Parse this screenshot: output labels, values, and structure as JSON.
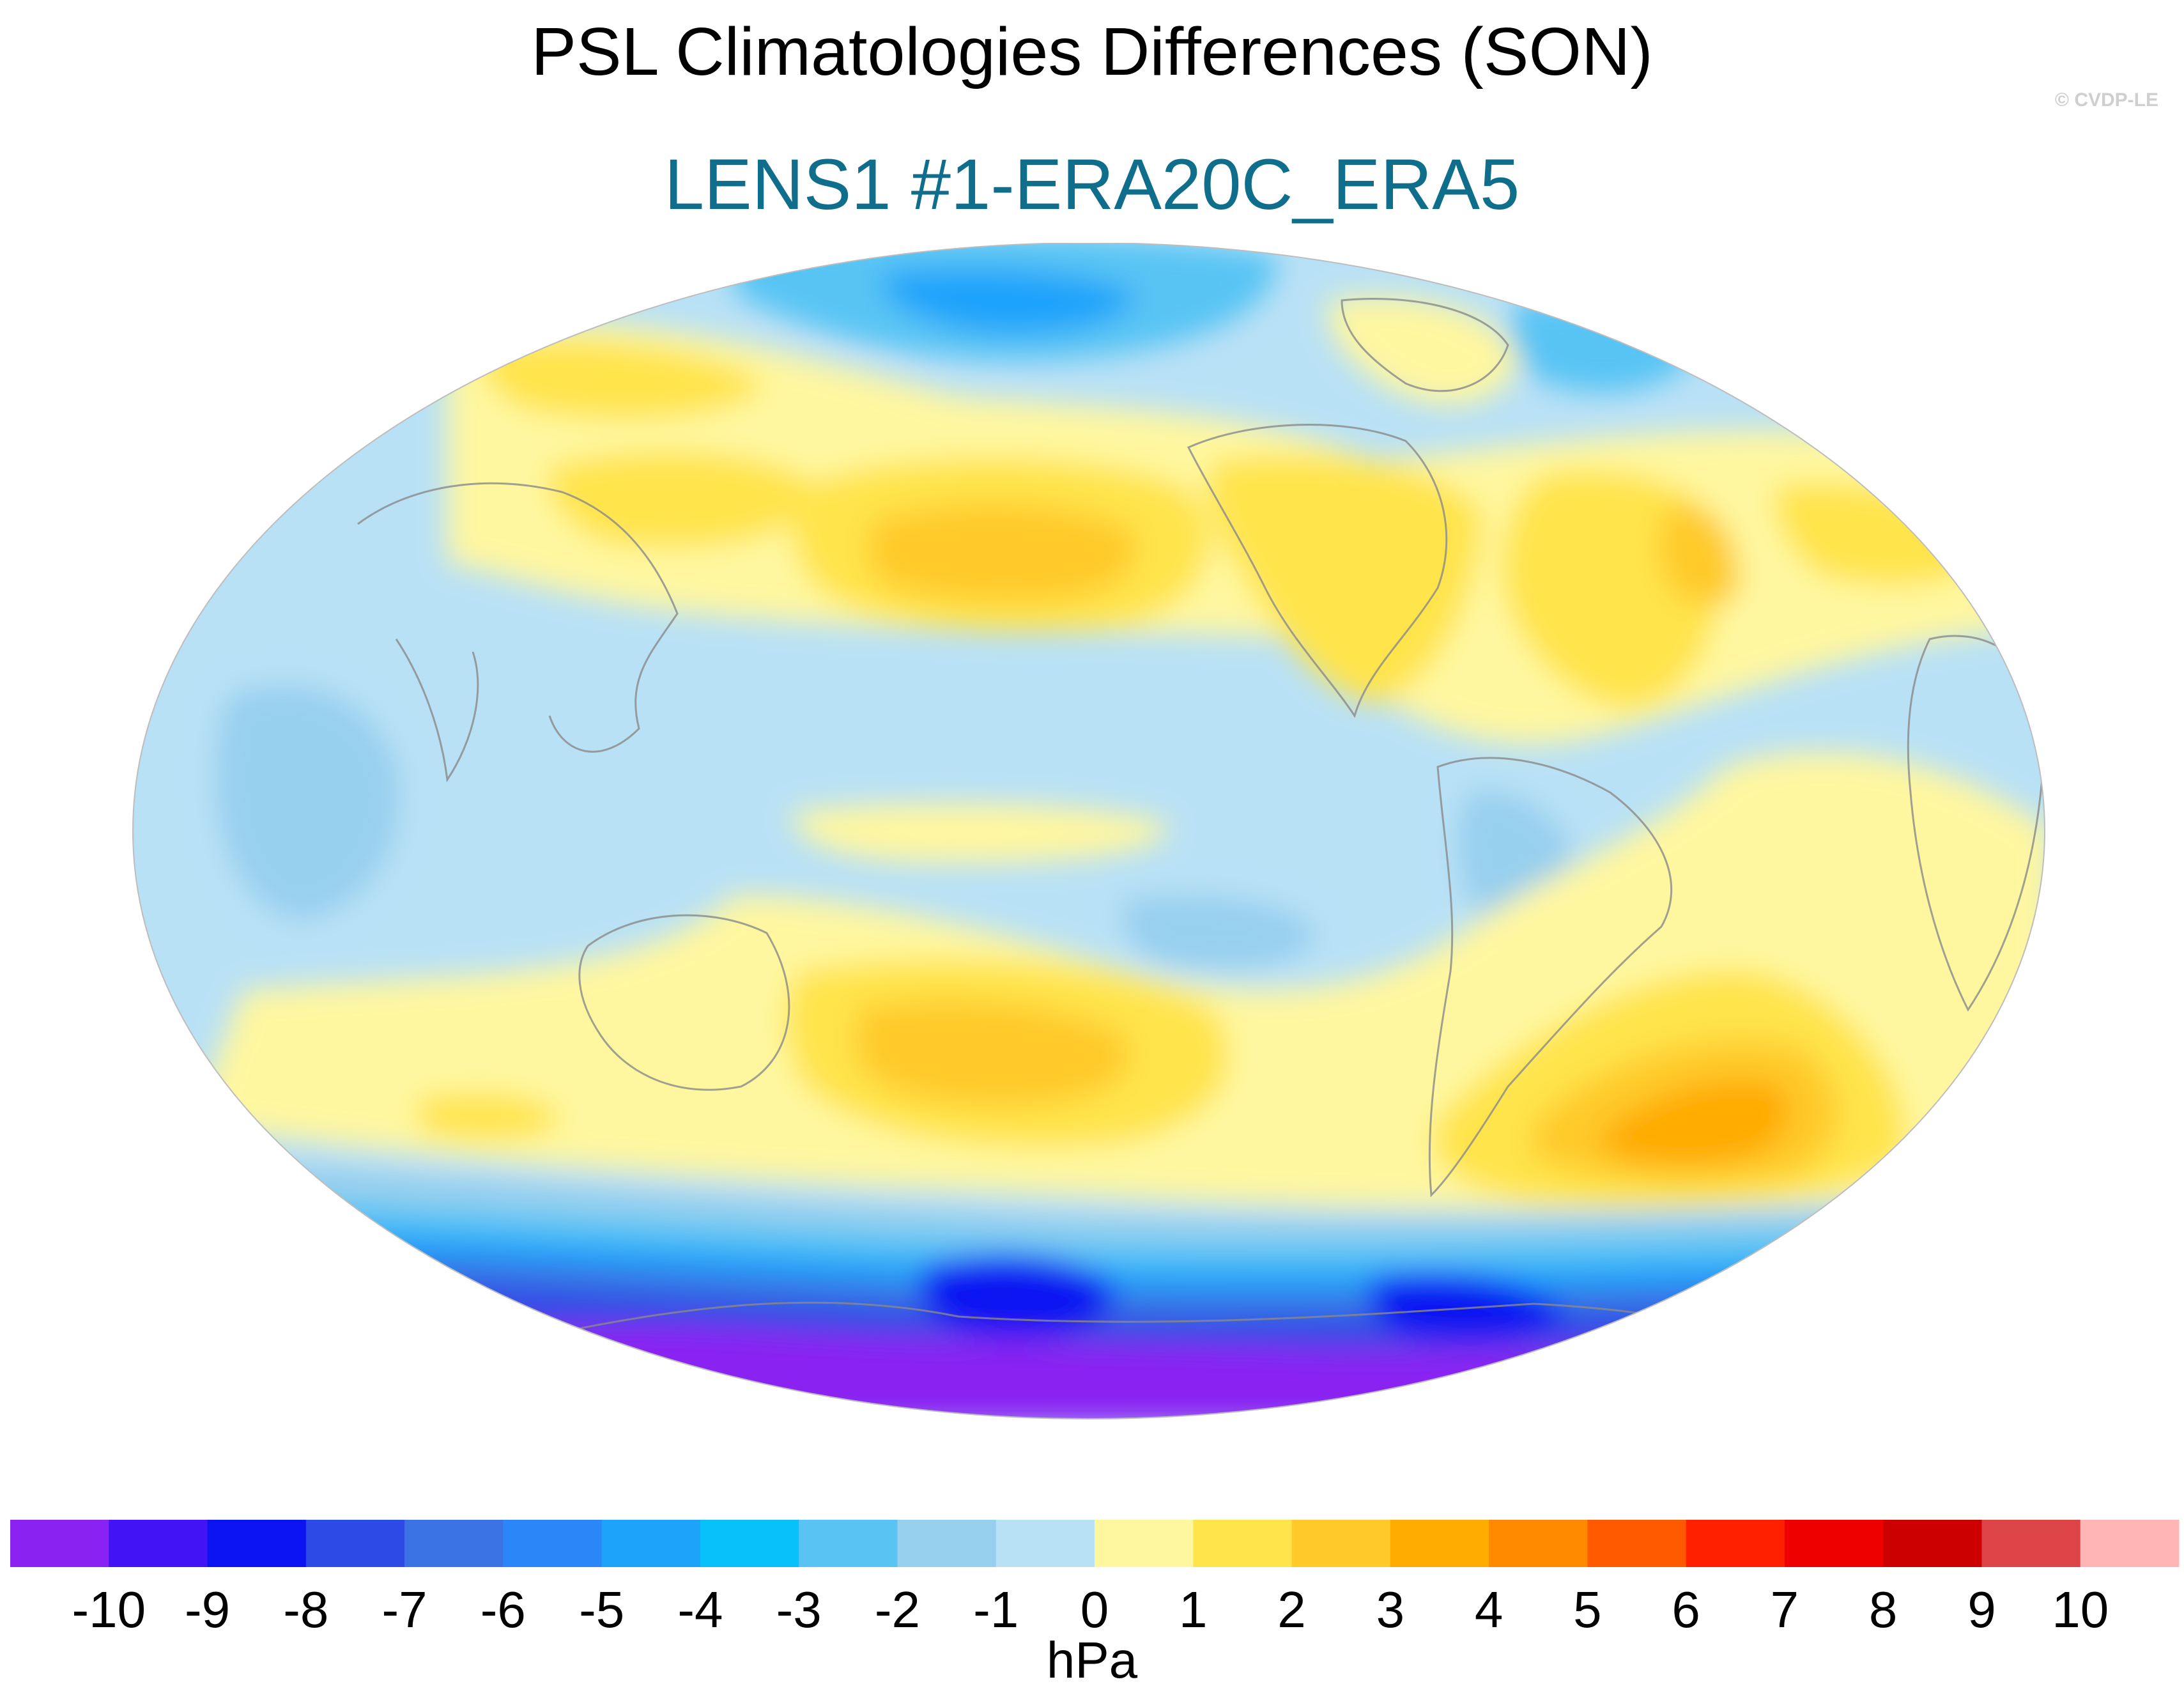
{
  "title": "PSL Climatologies Differences (SON)",
  "subtitle": "LENS1 #1-ERA20C_ERA5",
  "credit": "© CVDP-LE",
  "colors": {
    "subtitle": "#0f6e8c",
    "credit": "#cfcfcf",
    "coast": "#8a8a8a"
  },
  "colorbar": {
    "units": "hPa",
    "tick_labels": [
      "-10",
      "-9",
      "-8",
      "-7",
      "-6",
      "-5",
      "-4",
      "-3",
      "-2",
      "-1",
      "0",
      "1",
      "2",
      "3",
      "4",
      "5",
      "6",
      "7",
      "8",
      "9",
      "10"
    ],
    "colors": [
      "#8a22f2",
      "#4214f5",
      "#0a14f2",
      "#2e4ae6",
      "#3b72e4",
      "#2b87f7",
      "#1ea3fb",
      "#08c0fa",
      "#59c4f4",
      "#97cfee",
      "#b9e1f6",
      "#fff7a0",
      "#ffe44b",
      "#ffca2a",
      "#ffab00",
      "#ff8a00",
      "#ff5a00",
      "#ff2000",
      "#ee0000",
      "#cc0000",
      "#dd4447",
      "#ffb5b5"
    ]
  },
  "map": {
    "projection": "Robinson-like, Pacific-centered",
    "field": "PSL difference",
    "features": [
      {
        "name": "north-pacific-high",
        "value": 2.5
      },
      {
        "name": "south-pacific-high",
        "value": 2.5
      },
      {
        "name": "south-atlantic-high",
        "value": 3.5
      },
      {
        "name": "north-atlantic-high",
        "value": 1.8
      },
      {
        "name": "arctic-low",
        "value": -3.5
      },
      {
        "name": "southern-ocean-low",
        "value": -8.5
      },
      {
        "name": "antarctic-low",
        "value": -10.5
      }
    ]
  }
}
